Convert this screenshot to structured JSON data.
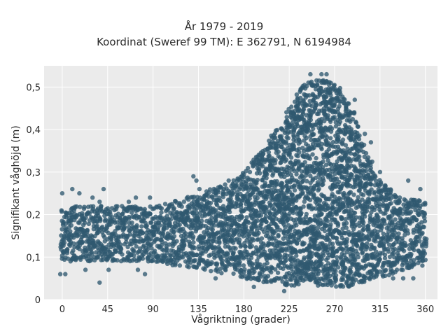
{
  "header": {
    "title_line1": "År 1979 - 2019",
    "title_line2": "Koordinat (Sweref 99 TM): E 362791, N 6194984"
  },
  "chart_data": {
    "type": "scatter",
    "title": "År 1979 - 2019 / Koordinat (Sweref 99 TM): E 362791, N 6194984",
    "xlabel": "Vågriktning (grader)",
    "ylabel": "Signifikant våghöjd (m)",
    "xlim": [
      -18,
      372
    ],
    "ylim": [
      0,
      0.55
    ],
    "x_ticks": [
      0,
      45,
      90,
      135,
      180,
      225,
      270,
      315,
      360
    ],
    "x_tick_labels": [
      "0",
      "45",
      "90",
      "135",
      "180",
      "225",
      "270",
      "315",
      "360"
    ],
    "y_ticks": [
      0,
      0.1,
      0.2,
      0.3,
      0.4,
      0.5
    ],
    "y_tick_labels": [
      "0",
      "0,1",
      "0,2",
      "0,3",
      "0,4",
      "0,5"
    ],
    "grid": true,
    "marker_color": "#2f5870",
    "background_color": "#ebebeb",
    "envelope": [
      {
        "x": 0,
        "low": 0.09,
        "high": 0.22
      },
      {
        "x": 45,
        "low": 0.09,
        "high": 0.22
      },
      {
        "x": 90,
        "low": 0.09,
        "high": 0.22
      },
      {
        "x": 110,
        "low": 0.08,
        "high": 0.23
      },
      {
        "x": 135,
        "low": 0.07,
        "high": 0.25
      },
      {
        "x": 160,
        "low": 0.06,
        "high": 0.27
      },
      {
        "x": 180,
        "low": 0.05,
        "high": 0.3
      },
      {
        "x": 200,
        "low": 0.04,
        "high": 0.36
      },
      {
        "x": 215,
        "low": 0.04,
        "high": 0.41
      },
      {
        "x": 225,
        "low": 0.03,
        "high": 0.46
      },
      {
        "x": 240,
        "low": 0.03,
        "high": 0.51
      },
      {
        "x": 260,
        "low": 0.03,
        "high": 0.52
      },
      {
        "x": 275,
        "low": 0.03,
        "high": 0.5
      },
      {
        "x": 290,
        "low": 0.03,
        "high": 0.44
      },
      {
        "x": 300,
        "low": 0.04,
        "high": 0.36
      },
      {
        "x": 315,
        "low": 0.05,
        "high": 0.28
      },
      {
        "x": 340,
        "low": 0.07,
        "high": 0.24
      },
      {
        "x": 360,
        "low": 0.09,
        "high": 0.23
      }
    ],
    "outliers": [
      [
        -2,
        0.06
      ],
      [
        3,
        0.06
      ],
      [
        0,
        0.25
      ],
      [
        10,
        0.26
      ],
      [
        17,
        0.25
      ],
      [
        23,
        0.07
      ],
      [
        30,
        0.24
      ],
      [
        37,
        0.23
      ],
      [
        37,
        0.04
      ],
      [
        41,
        0.26
      ],
      [
        46,
        0.07
      ],
      [
        66,
        0.23
      ],
      [
        73,
        0.24
      ],
      [
        75,
        0.07
      ],
      [
        82,
        0.06
      ],
      [
        87,
        0.24
      ],
      [
        130,
        0.29
      ],
      [
        133,
        0.28
      ],
      [
        136,
        0.26
      ],
      [
        152,
        0.05
      ],
      [
        165,
        0.28
      ],
      [
        186,
        0.3
      ],
      [
        190,
        0.03
      ],
      [
        196,
        0.34
      ],
      [
        198,
        0.33
      ],
      [
        210,
        0.38
      ],
      [
        220,
        0.02
      ],
      [
        246,
        0.53
      ],
      [
        257,
        0.53
      ],
      [
        262,
        0.53
      ],
      [
        290,
        0.47
      ],
      [
        300,
        0.39
      ],
      [
        306,
        0.37
      ],
      [
        315,
        0.3
      ],
      [
        328,
        0.05
      ],
      [
        338,
        0.05
      ],
      [
        343,
        0.28
      ],
      [
        348,
        0.05
      ],
      [
        355,
        0.26
      ],
      [
        357,
        0.08
      ]
    ]
  }
}
